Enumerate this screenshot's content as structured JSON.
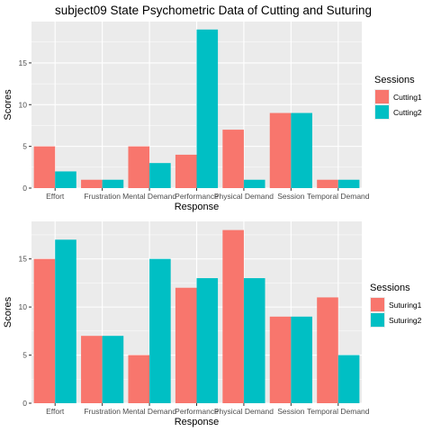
{
  "title": "subject09 State Psychometric Data of Cutting and Suturing",
  "colors": {
    "panel_bg": "#ebebeb",
    "grid": "#ffffff",
    "series1": "#f8766d",
    "series2": "#00bfc4",
    "text": "#4d4d4d"
  },
  "chart_data": [
    {
      "type": "bar",
      "title": "subject09 State Psychometric Data of Cutting and Suturing",
      "xlabel": "Response",
      "ylabel": "Scores",
      "categories": [
        "Effort",
        "Frustration",
        "Mental Demand",
        "Performance",
        "Physical Demand",
        "Session",
        "Temporal Demand"
      ],
      "series": [
        {
          "name": "Cutting1",
          "color": "#f8766d",
          "values": [
            5,
            1,
            5,
            4,
            7,
            9,
            1
          ]
        },
        {
          "name": "Cutting2",
          "color": "#00bfc4",
          "values": [
            2,
            1,
            3,
            19,
            1,
            9,
            1
          ]
        }
      ],
      "ylim": [
        0,
        19.95
      ],
      "yticks": [
        0,
        5,
        10,
        15
      ],
      "grid": true,
      "legend": {
        "title": "Sessions",
        "position": "right"
      }
    },
    {
      "type": "bar",
      "xlabel": "Response",
      "ylabel": "Scores",
      "categories": [
        "Effort",
        "Frustration",
        "Mental Demand",
        "Performance",
        "Physical Demand",
        "Session",
        "Temporal Demand"
      ],
      "series": [
        {
          "name": "Suturing1",
          "color": "#f8766d",
          "values": [
            15,
            7,
            5,
            12,
            18,
            9,
            11
          ]
        },
        {
          "name": "Suturing2",
          "color": "#00bfc4",
          "values": [
            17,
            7,
            15,
            13,
            13,
            9,
            5
          ]
        }
      ],
      "ylim": [
        0,
        18.9
      ],
      "yticks": [
        0,
        5,
        10,
        15
      ],
      "grid": true,
      "legend": {
        "title": "Sessions",
        "position": "right"
      }
    }
  ]
}
